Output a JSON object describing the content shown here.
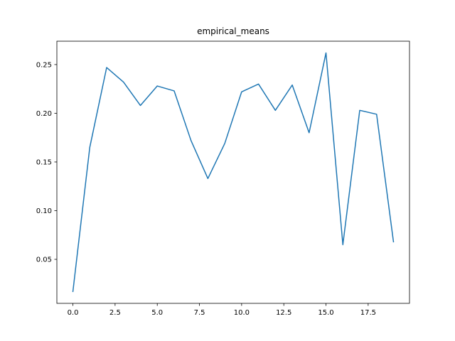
{
  "chart_data": {
    "type": "line",
    "title": "empirical_means",
    "xlabel": "",
    "ylabel": "",
    "xlim": [
      -0.95,
      19.95
    ],
    "ylim": [
      0.0048,
      0.274
    ],
    "xticks": [
      0.0,
      2.5,
      5.0,
      7.5,
      10.0,
      12.5,
      15.0,
      17.5
    ],
    "xtick_labels": [
      "0.0",
      "2.5",
      "5.0",
      "7.5",
      "10.0",
      "12.5",
      "15.0",
      "17.5"
    ],
    "yticks": [
      0.05,
      0.1,
      0.15,
      0.2,
      0.25
    ],
    "ytick_labels": [
      "0.05",
      "0.10",
      "0.15",
      "0.20",
      "0.25"
    ],
    "grid": false,
    "legend": "none",
    "line_color": "#1f77b4",
    "series": [
      {
        "x": [
          0,
          1,
          2,
          3,
          4,
          5,
          6,
          7,
          8,
          9,
          10,
          11,
          12,
          13,
          14,
          15,
          16,
          17,
          18,
          19
        ],
        "values": [
          0.017,
          0.165,
          0.247,
          0.232,
          0.208,
          0.228,
          0.223,
          0.172,
          0.133,
          0.169,
          0.222,
          0.23,
          0.203,
          0.229,
          0.18,
          0.262,
          0.065,
          0.203,
          0.199,
          0.068
        ]
      }
    ]
  }
}
